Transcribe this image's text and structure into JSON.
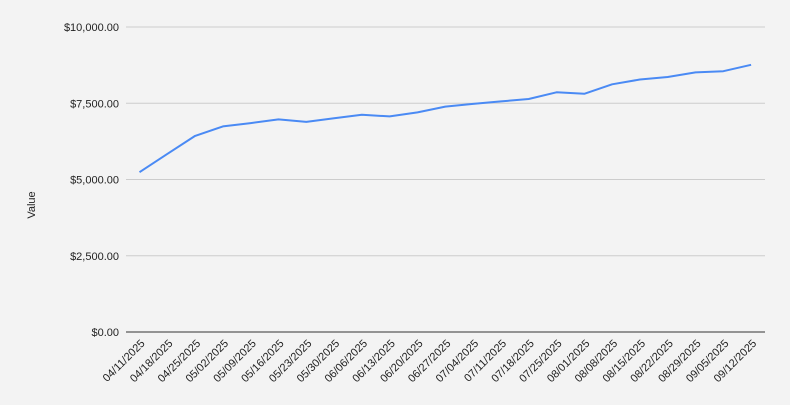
{
  "chart_data": {
    "type": "line",
    "title": "",
    "xlabel": "",
    "ylabel": "Value",
    "ylim": [
      0,
      10000
    ],
    "yticks": [
      "$0.00",
      "$2,500.00",
      "$5,000.00",
      "$7,500.00",
      "$10,000.00"
    ],
    "ytick_values": [
      0,
      2500,
      5000,
      7500,
      10000
    ],
    "grid": true,
    "legend": "none",
    "line_color": "#4a8af4",
    "x": [
      "04/11/2025",
      "04/18/2025",
      "04/25/2025",
      "05/02/2025",
      "05/09/2025",
      "05/16/2025",
      "05/23/2025",
      "05/30/2025",
      "06/06/2025",
      "06/13/2025",
      "06/20/2025",
      "06/27/2025",
      "07/04/2025",
      "07/11/2025",
      "07/18/2025",
      "07/25/2025",
      "08/01/2025",
      "08/08/2025",
      "08/15/2025",
      "08/22/2025",
      "08/29/2025",
      "09/05/2025",
      "09/12/2025"
    ],
    "series": [
      {
        "values": [
          5240,
          5840,
          6430,
          6740,
          6850,
          6970,
          6890,
          7010,
          7120,
          7070,
          7200,
          7390,
          7480,
          7560,
          7640,
          7860,
          7810,
          8120,
          8280,
          8360,
          8510,
          8550,
          8760
        ]
      }
    ]
  }
}
